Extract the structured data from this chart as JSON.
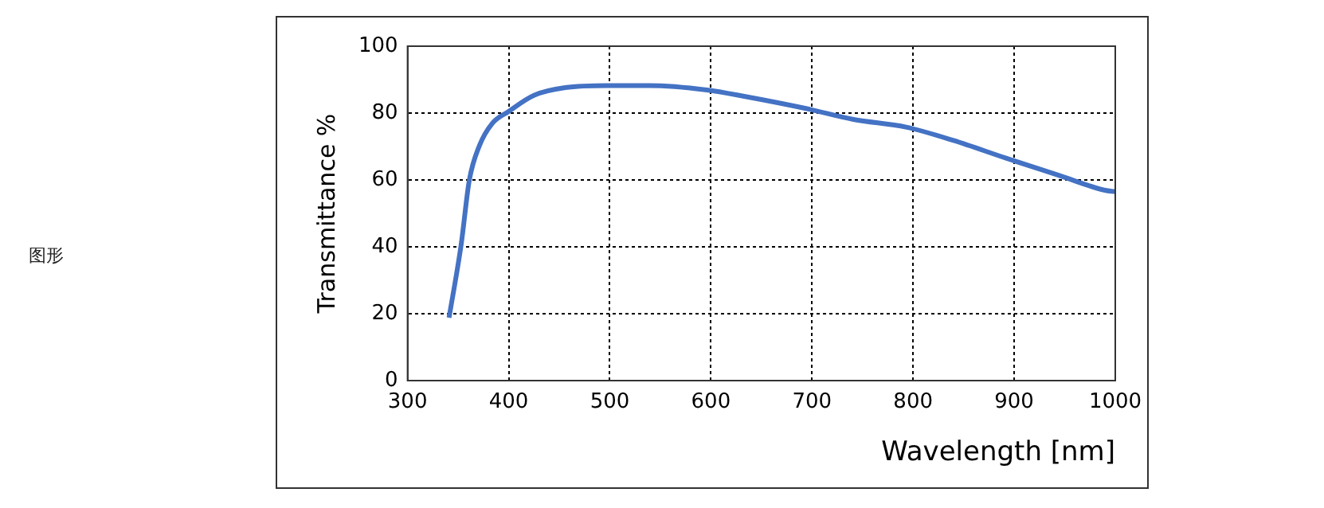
{
  "chart_data": {
    "type": "line",
    "xlabel": "Wavelength [nm]",
    "ylabel": "Transmittance %",
    "annotations": [
      "图形"
    ],
    "x": [
      341,
      353,
      361,
      371,
      384,
      400,
      425,
      456,
      498,
      539,
      596,
      633,
      695,
      741,
      793,
      840,
      892,
      944,
      990,
      1000
    ],
    "series": [
      {
        "color": "#4472c4",
        "values": [
          18.8,
          40.7,
          59.8,
          70.2,
          77,
          80.5,
          85.3,
          87.6,
          88.2,
          88.2,
          86.9,
          85,
          81.3,
          78.1,
          75.8,
          71.8,
          66.5,
          61.4,
          56.9,
          56.5
        ]
      }
    ],
    "xlim": [
      300,
      1000
    ],
    "xticks": [
      300,
      400,
      500,
      600,
      700,
      800,
      900,
      1000
    ],
    "ylim": [
      0,
      100
    ],
    "yticks": [
      0,
      20,
      40,
      60,
      80,
      100
    ],
    "grid": true,
    "legend": false,
    "marker": "none",
    "line_style": "solid"
  }
}
